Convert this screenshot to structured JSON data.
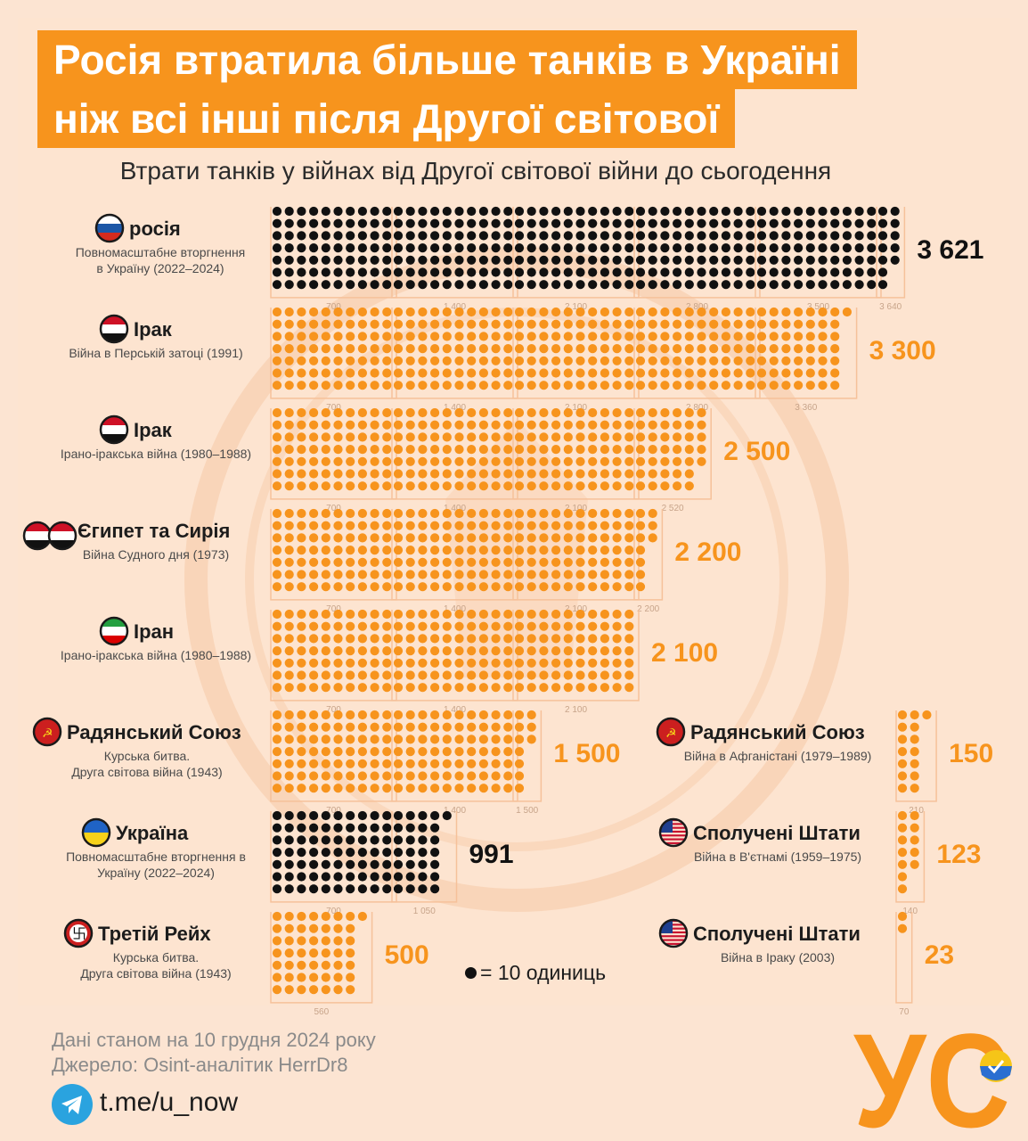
{
  "title_line1": "Росія втратила більше танків в Україні",
  "title_line2": "ніж всі інші після Другої світової",
  "subtitle": "Втрати танків у війнах від Другої світової війни до сьогодення",
  "legend": "= 10 одиниць",
  "footer": {
    "date": "Дані станом на 10 грудня 2024 року",
    "source": "Джерело: Osint-аналітик HerrDr8",
    "link": "t.me/u_now"
  },
  "logo_text": "УС",
  "colors": {
    "orange": "#f7941d",
    "black": "#111111",
    "background": "#fde4d0",
    "tick": "#c7a48a"
  },
  "chart_data": {
    "type": "dot-matrix",
    "unit": "1 dot = 10 units",
    "entries": [
      {
        "name": "росія",
        "desc": [
          "Повномасштабне вторгнення",
          "в Україну (2022–2024)"
        ],
        "value": 3621,
        "value_label": "3 621",
        "color": "#111111",
        "ticks": [
          "700",
          "1 400",
          "2 100",
          "2 800",
          "3 500",
          "3 640"
        ],
        "flags": [
          "russia"
        ]
      },
      {
        "name": "Ірак",
        "desc": [
          "Війна в Перській затоці (1991)"
        ],
        "value": 3300,
        "value_label": "3 300",
        "color": "#f7941d",
        "ticks": [
          "700",
          "1 400",
          "2 100",
          "2 800",
          "3 360"
        ],
        "flags": [
          "iraq"
        ]
      },
      {
        "name": "Ірак",
        "desc": [
          "Ірано-іракська війна (1980–1988)"
        ],
        "value": 2500,
        "value_label": "2 500",
        "color": "#f7941d",
        "ticks": [
          "700",
          "1 400",
          "2 100",
          "2 520"
        ],
        "flags": [
          "iraq"
        ]
      },
      {
        "name": "Єгипет та Сирія",
        "desc": [
          "Війна Судного дня (1973)"
        ],
        "value": 2200,
        "value_label": "2 200",
        "color": "#f7941d",
        "ticks": [
          "700",
          "1 400",
          "2 100",
          "2 200"
        ],
        "flags": [
          "egypt",
          "syria"
        ]
      },
      {
        "name": "Іран",
        "desc": [
          "Ірано-іракська війна (1980–1988)"
        ],
        "value": 2100,
        "value_label": "2 100",
        "color": "#f7941d",
        "ticks": [
          "700",
          "1 400",
          "2 100"
        ],
        "flags": [
          "iran"
        ]
      },
      {
        "name": "Радянський Союз",
        "desc": [
          "Курська битва.",
          "Друга світова війна (1943)"
        ],
        "value": 1500,
        "value_label": "1 500",
        "color": "#f7941d",
        "ticks": [
          "700",
          "1 400",
          "1 500"
        ],
        "flags": [
          "ussr"
        ]
      },
      {
        "name": "Україна",
        "desc": [
          "Повномасштабне вторгнення в",
          "Україну (2022–2024)"
        ],
        "value": 991,
        "value_label": "991",
        "color": "#111111",
        "ticks": [
          "700",
          "1 050"
        ],
        "flags": [
          "ukraine"
        ]
      },
      {
        "name": "Третій Рейх",
        "desc": [
          "Курська битва.",
          "Друга світова війна (1943)"
        ],
        "value": 500,
        "value_label": "500",
        "color": "#f7941d",
        "ticks": [
          "560"
        ],
        "flags": [
          "reich"
        ]
      },
      {
        "name": "Радянський Союз",
        "desc": [
          "Війна в Афганістані (1979–1989)"
        ],
        "value": 150,
        "value_label": "150",
        "color": "#f7941d",
        "ticks": [
          "210"
        ],
        "flags": [
          "ussr"
        ]
      },
      {
        "name": "Сполучені Штати",
        "desc": [
          "Війна в В'єтнамі (1959–1975)"
        ],
        "value": 123,
        "value_label": "123",
        "color": "#f7941d",
        "ticks": [
          "140"
        ],
        "flags": [
          "usa"
        ]
      },
      {
        "name": "Сполучені Штати",
        "desc": [
          "Війна в Іраку (2003)"
        ],
        "value": 23,
        "value_label": "23",
        "color": "#f7941d",
        "ticks": [
          "70"
        ],
        "flags": [
          "usa"
        ]
      }
    ]
  }
}
